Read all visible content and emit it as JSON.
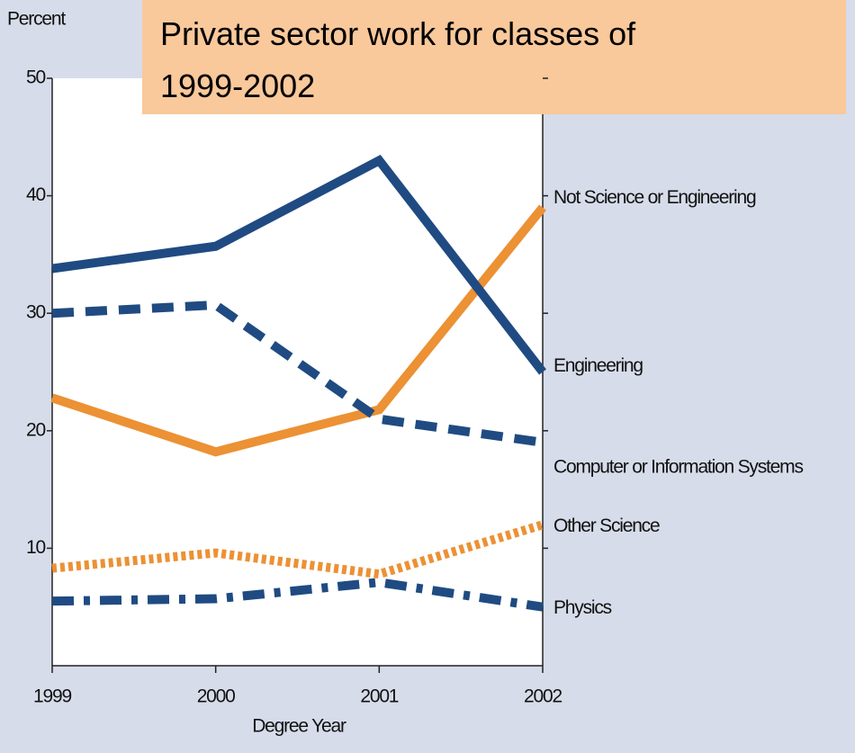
{
  "chart_data": {
    "type": "line",
    "title": "Private sector work for classes of 1999-2002",
    "y_label": "Percent",
    "x_label": "Degree Year",
    "x": [
      1999,
      2000,
      2001,
      2002
    ],
    "xlim": [
      1999,
      2002
    ],
    "xticks": [
      1999,
      2000,
      2001,
      2002
    ],
    "ylim": [
      0,
      50
    ],
    "yticks": [
      10,
      20,
      30,
      40,
      50
    ],
    "series": [
      {
        "name": "Not Science or Engineering",
        "color": "#ec9134",
        "dash": "solid",
        "values": [
          22.8,
          18.2,
          21.8,
          39
        ]
      },
      {
        "name": "Engineering",
        "color": "#1f4b82",
        "dash": "solid",
        "values": [
          33.8,
          35.7,
          43,
          25
        ]
      },
      {
        "name": "Computer or Information Systems",
        "color": "#1f4b82",
        "dash": "dashed",
        "values": [
          30,
          30.7,
          21,
          19
        ]
      },
      {
        "name": "Other Science",
        "color": "#ec9134",
        "dash": "dotted",
        "values": [
          8.3,
          9.6,
          7.8,
          12
        ]
      },
      {
        "name": "Physics",
        "color": "#1f4b82",
        "dash": "dashdot",
        "values": [
          5.5,
          5.7,
          7.1,
          5
        ]
      }
    ]
  }
}
